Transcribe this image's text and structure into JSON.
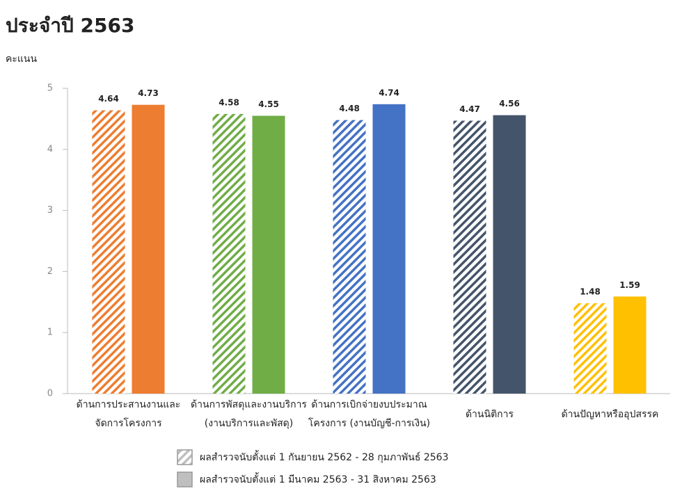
{
  "chart_data": {
    "type": "bar",
    "title": "ประจำปี 2563",
    "y_label": "คะแนน",
    "categories": [
      [
        "ด้านการประสานงานและ",
        "จัดการโครงการ"
      ],
      [
        "ด้านการพัสดุและงานบริการ",
        "(งานบริการและพัสดุ)"
      ],
      [
        "ด้านการเบิกจ่ายงบประมาณ",
        "โครงการ (งานบัญชี-การเงิน)"
      ],
      [
        "ด้านนิติการ"
      ],
      [
        "ด้านปัญหาหรืออุปสรรค"
      ]
    ],
    "category_colors": [
      "#ED7D31",
      "#70AD47",
      "#4472C4",
      "#44546A",
      "#FFC000"
    ],
    "series": [
      {
        "name": "ผลสำรวจนับตั้งแต่ 1 กันยายน 2562 - 28 กุมภาพันธ์ 2563",
        "color": "#bfbfbf",
        "pattern": "hatch",
        "values": [
          4.64,
          4.58,
          4.48,
          4.47,
          1.48
        ]
      },
      {
        "name": "ผลสำรวจนับตั้งแต่ 1 มีนาคม 2563 - 31 สิงหาคม 2563",
        "color": "#bfbfbf",
        "pattern": "solid",
        "values": [
          4.73,
          4.55,
          4.74,
          4.56,
          1.59
        ]
      }
    ],
    "ylim": [
      0,
      5
    ],
    "yticks": [
      0,
      1,
      2,
      3,
      4,
      5
    ],
    "grid": false,
    "legend": "bottom"
  }
}
